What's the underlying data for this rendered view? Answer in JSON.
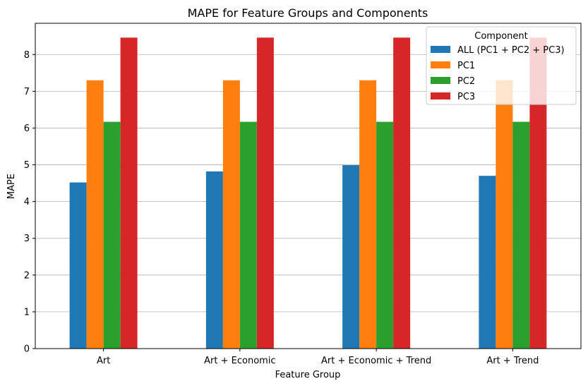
{
  "chart_data": {
    "type": "bar",
    "title": "MAPE for Feature Groups and Components",
    "xlabel": "Feature Group",
    "ylabel": "MAPE",
    "categories": [
      "Art",
      "Art + Economic",
      "Art + Economic + Trend",
      "Art + Trend"
    ],
    "ylim": [
      0,
      8.85
    ],
    "yticks": [
      0,
      1,
      2,
      3,
      4,
      5,
      6,
      7,
      8
    ],
    "grid": "horizontal",
    "legend_title": "Component",
    "legend_position": "top-right",
    "series": [
      {
        "name": "ALL (PC1 + PC2 + PC3)",
        "color": "#1f77b4",
        "values": [
          4.52,
          4.82,
          4.99,
          4.7
        ]
      },
      {
        "name": "PC1",
        "color": "#ff7f0e",
        "values": [
          7.3,
          7.3,
          7.3,
          7.3
        ]
      },
      {
        "name": "PC2",
        "color": "#2ca02c",
        "values": [
          6.17,
          6.17,
          6.17,
          6.17
        ]
      },
      {
        "name": "PC3",
        "color": "#d62728",
        "values": [
          8.46,
          8.46,
          8.46,
          8.46
        ]
      }
    ]
  }
}
